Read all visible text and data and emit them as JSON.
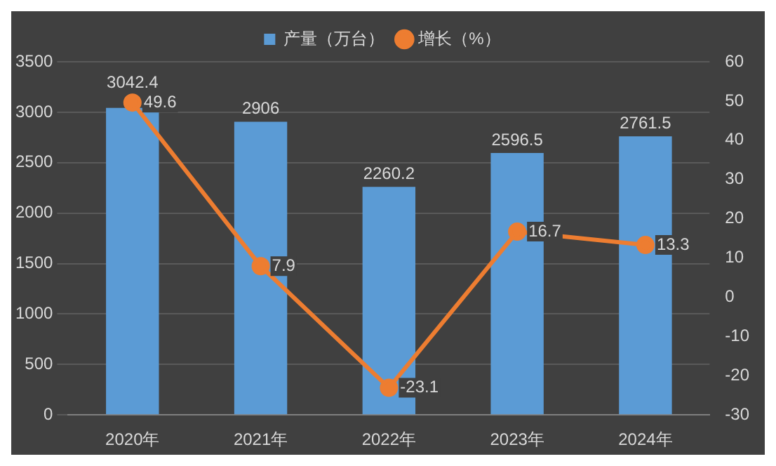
{
  "chart_data": {
    "type": "bar",
    "categories": [
      "2020年",
      "2021年",
      "2022年",
      "2023年",
      "2024年"
    ],
    "series": [
      {
        "name": "产量（万台）",
        "color": "#5b9bd5",
        "values": [
          3042.4,
          2906,
          2260.2,
          2596.5,
          2761.5
        ]
      },
      {
        "name": "增长（%）",
        "type": "line",
        "axis": "y2",
        "color": "#ed7d31",
        "values": [
          49.6,
          7.9,
          -23.1,
          16.7,
          13.3
        ]
      }
    ],
    "ylim": [
      0,
      3500
    ],
    "yticks": [
      0,
      500,
      1000,
      1500,
      2000,
      2500,
      3000,
      3500
    ],
    "y2lim": [
      -30,
      60
    ],
    "y2ticks": [
      -30,
      -20,
      -10,
      0,
      10,
      20,
      30,
      40,
      50,
      60
    ],
    "grid": "y",
    "legend": "top",
    "marker": "circle",
    "data_labels": true
  }
}
